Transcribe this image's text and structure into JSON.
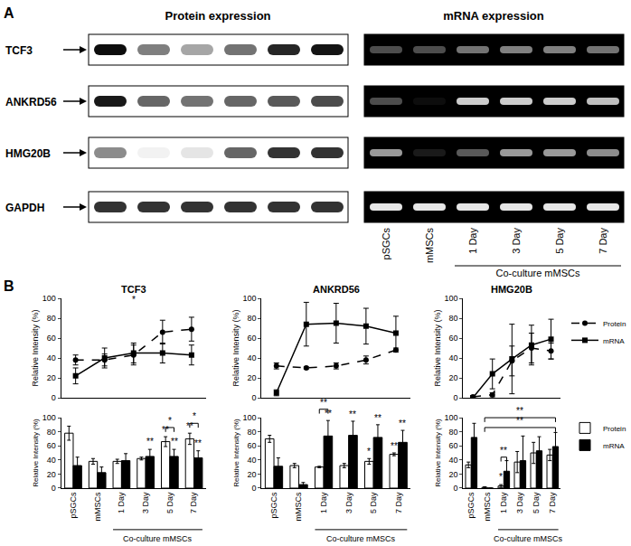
{
  "panel_labels": [
    "A",
    "B"
  ],
  "panel_a": {
    "protein_title": "Protein expression",
    "mrna_title": "mRNA expression",
    "columns": [
      "pSGCs",
      "mMSCs",
      "1 Day",
      "3 Day",
      "5 Day",
      "7 Day"
    ],
    "group_label": {
      "text": "Co-culture mMSCs",
      "from": 2,
      "to": 5
    },
    "rows": [
      {
        "label": "TCF3",
        "protein": [
          0.95,
          0.5,
          0.35,
          0.55,
          0.85,
          0.92
        ],
        "mrna": [
          0.3,
          0.3,
          0.45,
          0.5,
          0.5,
          0.45
        ]
      },
      {
        "label": "ANKRD56",
        "protein": [
          0.9,
          0.6,
          0.55,
          0.6,
          0.65,
          0.7
        ],
        "mrna": [
          0.3,
          0.05,
          0.8,
          0.8,
          0.8,
          0.75
        ]
      },
      {
        "label": "HMG20B",
        "protein": [
          0.45,
          0.05,
          0.1,
          0.6,
          0.8,
          0.8
        ],
        "mrna": [
          0.6,
          0.1,
          0.35,
          0.6,
          0.6,
          0.55
        ]
      },
      {
        "label": "GAPDH",
        "protein": [
          0.8,
          0.8,
          0.8,
          0.8,
          0.8,
          0.8
        ],
        "mrna": [
          0.9,
          0.9,
          0.9,
          0.9,
          0.9,
          0.9
        ]
      }
    ]
  },
  "chart_data": [
    {
      "type": "line",
      "title": "TCF3",
      "y_label": "Relative Intensity (%)",
      "categories": [
        null,
        null,
        null,
        null,
        null
      ],
      "tick_labels": "y",
      "ylim": [
        0,
        100
      ],
      "yticks": [
        0,
        20,
        40,
        60,
        80,
        100
      ],
      "grid": false,
      "series": [
        {
          "name": "Protein",
          "color": "#000000",
          "line_style": "dash",
          "marker": "circle",
          "values": [
            38,
            38,
            43,
            66,
            69
          ],
          "errors": [
            5,
            6,
            10,
            12,
            12
          ]
        },
        {
          "name": "mRNA",
          "color": "#000000",
          "line_style": "solid",
          "marker": "square",
          "values": [
            22,
            40,
            45,
            45,
            43
          ],
          "errors": [
            8,
            10,
            10,
            10,
            10
          ]
        }
      ],
      "annotations": [
        {
          "text": "*",
          "x": 2,
          "y": 92
        }
      ]
    },
    {
      "type": "line",
      "title": "ANKRD56",
      "y_label": "Relative Intensity (%)",
      "categories": [
        null,
        null,
        null,
        null,
        null
      ],
      "tick_labels": "y",
      "ylim": [
        0,
        100
      ],
      "yticks": [
        0,
        20,
        40,
        60,
        80,
        100
      ],
      "grid": false,
      "series": [
        {
          "name": "Protein",
          "color": "#000000",
          "line_style": "dash",
          "marker": "circle",
          "values": [
            32,
            30,
            32,
            38,
            48
          ],
          "errors": [
            3,
            1,
            3,
            4,
            2
          ]
        },
        {
          "name": "mRNA",
          "color": "#000000",
          "line_style": "solid",
          "marker": "square",
          "values": [
            5,
            74,
            75,
            72,
            65
          ],
          "errors": [
            3,
            22,
            20,
            18,
            17
          ]
        }
      ]
    },
    {
      "type": "line",
      "title": "HMG20B",
      "y_label": "Relative Intensity (%)",
      "categories": [
        null,
        null,
        null,
        null,
        null
      ],
      "tick_labels": "y",
      "ylim": [
        0,
        100
      ],
      "yticks": [
        0,
        20,
        40,
        60,
        80,
        100
      ],
      "grid": false,
      "legend": "right",
      "series": [
        {
          "name": "Protein",
          "color": "#000000",
          "line_style": "dash",
          "marker": "circle",
          "values": [
            1,
            3,
            37,
            50,
            47
          ],
          "errors": [
            1,
            2,
            15,
            15,
            8
          ]
        },
        {
          "name": "mRNA",
          "color": "#000000",
          "line_style": "solid",
          "marker": "square",
          "values": [
            0,
            24,
            39,
            53,
            59
          ],
          "errors": [
            0,
            15,
            35,
            20,
            20
          ]
        }
      ]
    },
    {
      "type": "bar",
      "y_label": "Relative Intensity (%)",
      "categories": [
        "pSGCs",
        "mMSCs",
        "1 Day",
        "3 Day",
        "5 Day",
        "7 Day"
      ],
      "ylim": [
        0,
        100
      ],
      "yticks": [
        0,
        20,
        40,
        60,
        80,
        100
      ],
      "grid": false,
      "group_label": {
        "text": "Co-culture mMSCs",
        "from": 2,
        "to": 5
      },
      "series": [
        {
          "name": "Protein",
          "color": "#ffffff",
          "values": [
            78,
            38,
            38,
            42,
            66,
            70
          ],
          "errors": [
            10,
            4,
            3,
            2,
            7,
            8
          ]
        },
        {
          "name": "mRNA",
          "color": "#000000",
          "values": [
            32,
            22,
            39,
            45,
            45,
            43
          ],
          "errors": [
            12,
            8,
            10,
            10,
            10,
            10
          ]
        }
      ],
      "annotations": [
        {
          "text": "**",
          "x": 3,
          "series": "mRNA",
          "y": 56
        },
        {
          "text": "**",
          "x": 4,
          "series": "Protein",
          "y": 73
        },
        {
          "text": "**",
          "x": 4,
          "series": "mRNA",
          "y": 56
        },
        {
          "text": "**",
          "x": 5,
          "series": "Protein",
          "y": 78
        },
        {
          "text": "**",
          "x": 5,
          "series": "mRNA",
          "y": 54
        }
      ],
      "brackets": [
        {
          "text": "*",
          "from": 4,
          "to": 4,
          "y": 86
        },
        {
          "text": "*",
          "from": 5,
          "to": 5,
          "y": 92
        }
      ]
    },
    {
      "type": "bar",
      "y_label": "Relative Intensity (%)",
      "categories": [
        "pSGCs",
        "mMSCs",
        "1 Day",
        "3 Day",
        "5 Day",
        "7 Day"
      ],
      "ylim": [
        0,
        100
      ],
      "yticks": [
        0,
        20,
        40,
        60,
        80,
        100
      ],
      "grid": false,
      "group_label": {
        "text": "Co-culture mMSCs",
        "from": 2,
        "to": 5
      },
      "series": [
        {
          "name": "Protein",
          "color": "#ffffff",
          "values": [
            70,
            32,
            30,
            32,
            38,
            48
          ],
          "errors": [
            5,
            3,
            1,
            3,
            4,
            2
          ]
        },
        {
          "name": "mRNA",
          "color": "#000000",
          "values": [
            31,
            5,
            74,
            75,
            72,
            65
          ],
          "errors": [
            12,
            3,
            22,
            20,
            18,
            17
          ]
        }
      ],
      "annotations": [
        {
          "text": "**",
          "x": 2,
          "series": "mRNA",
          "y": 96
        },
        {
          "text": "**",
          "x": 3,
          "series": "mRNA",
          "y": 95
        },
        {
          "text": "*",
          "x": 4,
          "series": "Protein",
          "y": 42
        },
        {
          "text": "**",
          "x": 4,
          "series": "mRNA",
          "y": 90
        },
        {
          "text": "**",
          "x": 5,
          "series": "Protein",
          "y": 50
        },
        {
          "text": "**",
          "x": 5,
          "series": "mRNA",
          "y": 82
        }
      ],
      "brackets": [
        {
          "text": "**",
          "from": 2,
          "to": 2,
          "y": 112
        }
      ]
    },
    {
      "type": "bar",
      "y_label": "Relative Intensity (%)",
      "categories": [
        "pSGCs",
        "mMSCs",
        "1 Day",
        "3 Day",
        "5 Day",
        "7 Day"
      ],
      "ylim": [
        0,
        100
      ],
      "yticks": [
        0,
        20,
        40,
        60,
        80,
        100
      ],
      "grid": false,
      "legend": "right",
      "group_label": {
        "text": "Co-culture mMSCs",
        "from": 2,
        "to": 5
      },
      "series": [
        {
          "name": "Protein",
          "color": "#ffffff",
          "values": [
            33,
            1,
            3,
            37,
            50,
            47
          ],
          "errors": [
            4,
            1,
            2,
            15,
            15,
            8
          ]
        },
        {
          "name": "mRNA",
          "color": "#000000",
          "values": [
            72,
            0,
            24,
            39,
            53,
            59
          ],
          "errors": [
            20,
            0,
            15,
            35,
            20,
            20
          ]
        }
      ],
      "annotations": [
        {
          "text": "*",
          "x": 2,
          "series": "Protein",
          "y": 6
        }
      ],
      "brackets": [
        {
          "text": "**",
          "from": 2,
          "to": 2,
          "y": 44
        },
        {
          "text": "**",
          "from": 1,
          "to": 5,
          "y": 86
        },
        {
          "text": "**",
          "from": 1,
          "to": 5,
          "y": 100
        }
      ]
    }
  ]
}
